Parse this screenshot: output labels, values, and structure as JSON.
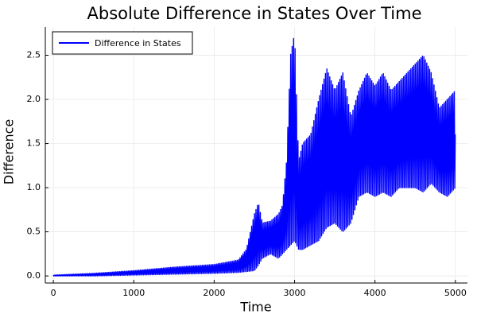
{
  "chart_data": {
    "type": "line",
    "title": "Absolute Difference in States Over Time",
    "xlabel": "Time",
    "ylabel": "Difference",
    "xlim": [
      -100,
      5150
    ],
    "ylim": [
      -0.08,
      2.82
    ],
    "xticks": [
      0,
      1000,
      2000,
      3000,
      4000,
      5000
    ],
    "xtick_labels": [
      "0",
      "1000",
      "2000",
      "3000",
      "4000",
      "5000"
    ],
    "yticks": [
      0.0,
      0.5,
      1.0,
      1.5,
      2.0,
      2.5
    ],
    "ytick_labels": [
      "0.0",
      "0.5",
      "1.0",
      "1.5",
      "2.0",
      "2.5"
    ],
    "grid": true,
    "legend_position": "top-left",
    "series": [
      {
        "name": "Difference in States",
        "color": "#0000ff",
        "envelope": {
          "x": [
            0,
            500,
            1000,
            1500,
            2000,
            2300,
            2400,
            2500,
            2550,
            2600,
            2700,
            2800,
            2850,
            2900,
            2950,
            3000,
            3050,
            3100,
            3200,
            3300,
            3400,
            3500,
            3600,
            3700,
            3800,
            3900,
            4000,
            4100,
            4200,
            4300,
            4400,
            4500,
            4600,
            4700,
            4800,
            4900,
            5000
          ],
          "upper": [
            0.01,
            0.03,
            0.06,
            0.1,
            0.13,
            0.18,
            0.3,
            0.7,
            0.83,
            0.6,
            0.62,
            0.7,
            0.8,
            1.3,
            2.5,
            2.75,
            1.3,
            1.5,
            1.6,
            2.0,
            2.35,
            2.1,
            2.3,
            1.8,
            2.1,
            2.3,
            2.15,
            2.3,
            2.1,
            2.2,
            2.3,
            2.4,
            2.5,
            2.3,
            1.9,
            2.0,
            2.1
          ],
          "lower": [
            0.0,
            0.0,
            0.01,
            0.02,
            0.03,
            0.04,
            0.05,
            0.06,
            0.12,
            0.2,
            0.25,
            0.2,
            0.25,
            0.3,
            0.35,
            0.4,
            0.3,
            0.3,
            0.35,
            0.4,
            0.55,
            0.6,
            0.5,
            0.6,
            0.9,
            0.95,
            0.9,
            0.95,
            0.9,
            1.0,
            1.0,
            1.0,
            0.95,
            1.05,
            0.95,
            0.9,
            1.0
          ]
        }
      }
    ]
  }
}
